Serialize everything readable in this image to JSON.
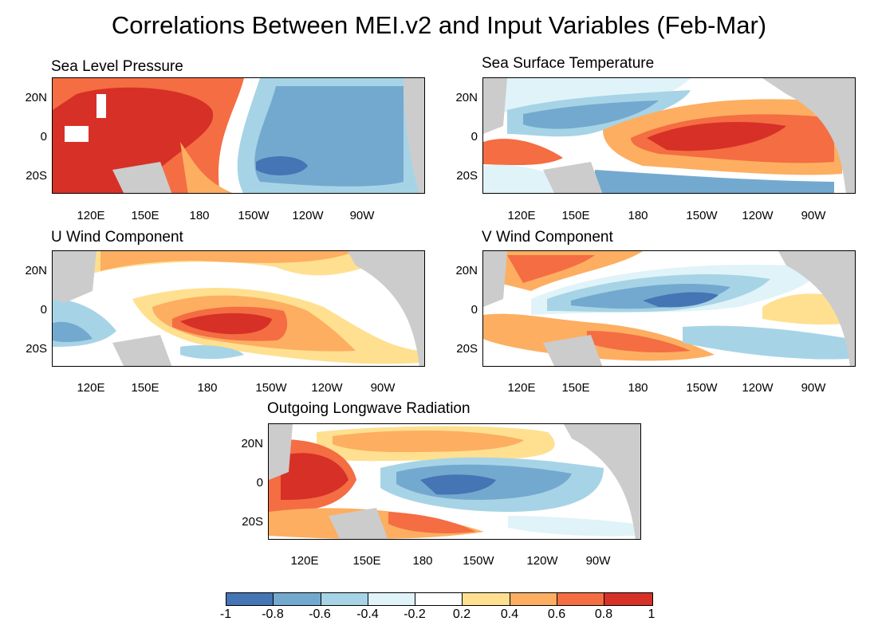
{
  "title": "Correlations Between MEI.v2 and Input Variables (Feb-Mar)",
  "panels": [
    {
      "title": "Sea Level Pressure",
      "lat_labels": [
        "20N",
        "0",
        "20S"
      ],
      "lon_labels": [
        "120E",
        "150E",
        "180",
        "150W",
        "120W",
        "90W"
      ]
    },
    {
      "title": "Sea Surface Temperature",
      "lat_labels": [
        "20N",
        "0",
        "20S"
      ],
      "lon_labels": [
        "120E",
        "150E",
        "180",
        "150W",
        "120W",
        "90W"
      ]
    },
    {
      "title": "U Wind Component",
      "lat_labels": [
        "20N",
        "0",
        "20S"
      ],
      "lon_labels": [
        "120E",
        "150E",
        "180",
        "150W",
        "120W",
        "90W"
      ]
    },
    {
      "title": "V Wind Component",
      "lat_labels": [
        "20N",
        "0",
        "20S"
      ],
      "lon_labels": [
        "120E",
        "150E",
        "180",
        "150W",
        "120W",
        "90W"
      ]
    },
    {
      "title": "Outgoing Longwave Radiation",
      "lat_labels": [
        "20N",
        "0",
        "20S"
      ],
      "lon_labels": [
        "120E",
        "150E",
        "180",
        "150W",
        "120W",
        "90W"
      ]
    }
  ],
  "colorbar": {
    "labels": [
      "-1",
      "-0.8",
      "-0.6",
      "-0.4",
      "-0.2",
      "0.2",
      "0.4",
      "0.6",
      "0.8",
      "1"
    ],
    "colors": [
      "#4575b4",
      "#74a9cf",
      "#a6d4e6",
      "#e0f3f8",
      "#ffffff",
      "#fee090",
      "#fdae61",
      "#f46d43",
      "#d73027"
    ]
  },
  "colors": {
    "land": "#cccccc",
    "ocean_neutral": "#ffffff"
  }
}
